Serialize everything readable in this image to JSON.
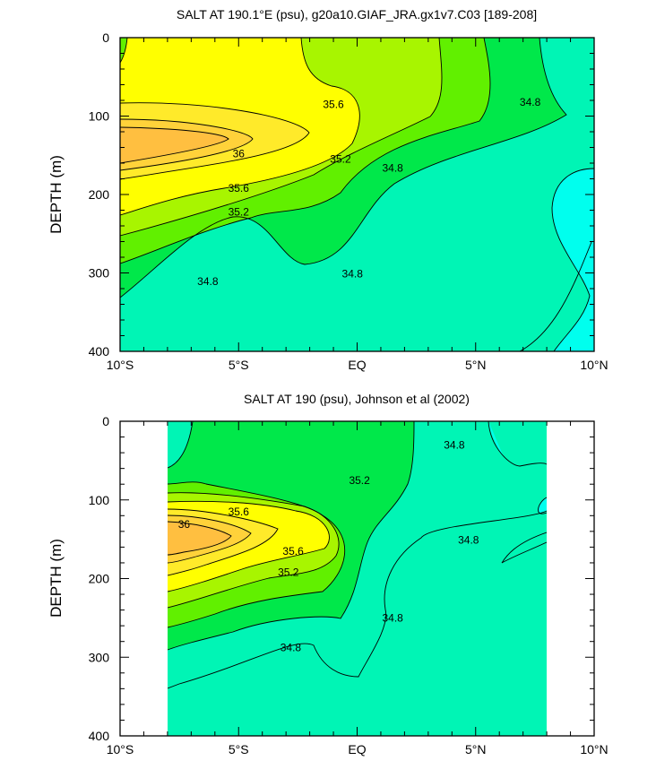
{
  "chart_data": [
    {
      "type": "contour",
      "title": "SALT AT 190.1°E (psu), g20a10.GIAF_JRA.gx1v7.C03 [189-208]",
      "xlabel": "",
      "ylabel": "DEPTH (m)",
      "xlim": [
        -10,
        10
      ],
      "ylim": [
        400,
        0
      ],
      "x_tick_labels": [
        "10°S",
        "5°S",
        "EQ",
        "5°N",
        "10°N"
      ],
      "y_tick_labels": [
        "0",
        "100",
        "200",
        "300",
        "400"
      ],
      "contour_levels": [
        34.6,
        34.8,
        35.0,
        35.2,
        35.4,
        35.6,
        35.8,
        36.0
      ],
      "fill_colors": [
        "#00ffee",
        "#00f5b5",
        "#00e84a",
        "#61f000",
        "#a8f500",
        "#ffff00",
        "#ffea2a",
        "#ffd23a",
        "#ffbf40"
      ],
      "contour_labels": [
        {
          "text": "35.6",
          "x": -1.0,
          "y": 85
        },
        {
          "text": "36",
          "x": -5.0,
          "y": 148
        },
        {
          "text": "35.2",
          "x": -0.7,
          "y": 155
        },
        {
          "text": "34.8",
          "x": 7.3,
          "y": 82
        },
        {
          "text": "34.8",
          "x": 1.5,
          "y": 166
        },
        {
          "text": "35.6",
          "x": -5.0,
          "y": 192
        },
        {
          "text": "35.2",
          "x": -5.0,
          "y": 222
        },
        {
          "text": "34.8",
          "x": -0.2,
          "y": 301
        },
        {
          "text": "34.8",
          "x": -6.3,
          "y": 311
        }
      ]
    },
    {
      "type": "contour",
      "title": "SALT AT 190 (psu), Johnson et al (2002)",
      "xlabel": "",
      "ylabel": "DEPTH (m)",
      "xlim": [
        -10,
        10
      ],
      "ylim": [
        400,
        0
      ],
      "data_extent_x": [
        -8,
        8
      ],
      "x_tick_labels": [
        "10°S",
        "5°S",
        "EQ",
        "5°N",
        "10°N"
      ],
      "y_tick_labels": [
        "0",
        "100",
        "200",
        "300",
        "400"
      ],
      "contour_levels": [
        34.6,
        34.8,
        35.0,
        35.2,
        35.4,
        35.6,
        35.8,
        36.0
      ],
      "fill_colors": [
        "#00ffee",
        "#00f5b5",
        "#00e84a",
        "#61f000",
        "#a8f500",
        "#ffff00",
        "#ffea2a",
        "#ffd23a",
        "#ffbf40"
      ],
      "contour_labels": [
        {
          "text": "34.8",
          "x": 4.1,
          "y": 30
        },
        {
          "text": "35.2",
          "x": 0.1,
          "y": 75
        },
        {
          "text": "35.6",
          "x": -5.0,
          "y": 115
        },
        {
          "text": "36",
          "x": -7.3,
          "y": 131
        },
        {
          "text": "35.6",
          "x": -2.7,
          "y": 165
        },
        {
          "text": "35.2",
          "x": -2.9,
          "y": 192
        },
        {
          "text": "34.8",
          "x": 4.7,
          "y": 151
        },
        {
          "text": "34.8",
          "x": 1.5,
          "y": 250
        },
        {
          "text": "34.8",
          "x": -2.8,
          "y": 288
        }
      ]
    }
  ]
}
